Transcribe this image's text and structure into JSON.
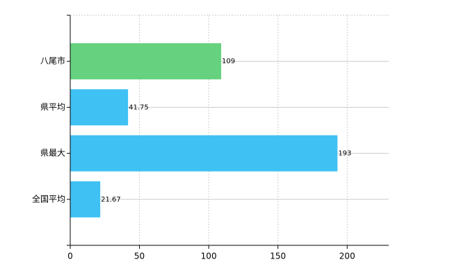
{
  "chart_data": {
    "type": "bar",
    "orientation": "horizontal",
    "categories": [
      "八尾市",
      "県平均",
      "県最大",
      "全国平均"
    ],
    "values": [
      109,
      41.75,
      193,
      21.67
    ],
    "colors": [
      "#66d17f",
      "#3fc1f3",
      "#3fc1f3",
      "#3fc1f3"
    ],
    "xlim": [
      0,
      230
    ],
    "xticks": [
      0,
      50,
      100,
      150,
      200
    ],
    "grid": true
  }
}
